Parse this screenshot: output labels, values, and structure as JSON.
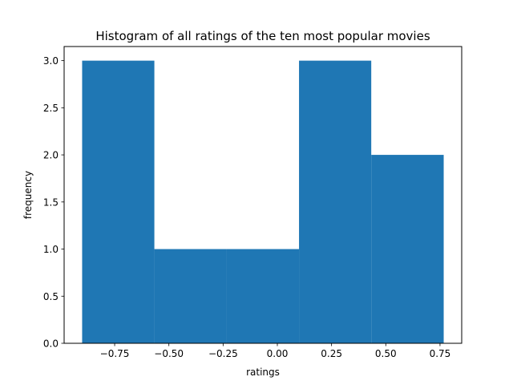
{
  "chart_data": {
    "type": "bar",
    "title": "Histogram of all ratings of the ten most popular movies",
    "xlabel": "ratings",
    "ylabel": "frequency",
    "bins": [
      {
        "x0": -0.9,
        "x1": -0.567,
        "count": 3
      },
      {
        "x0": -0.567,
        "x1": -0.233,
        "count": 1
      },
      {
        "x0": -0.233,
        "x1": 0.1,
        "count": 1
      },
      {
        "x0": 0.1,
        "x1": 0.433,
        "count": 3
      },
      {
        "x0": 0.433,
        "x1": 0.767,
        "count": 2
      }
    ],
    "xlim": [
      -0.983,
      0.85
    ],
    "ylim": [
      0,
      3.15
    ],
    "xticks": [
      -0.75,
      -0.5,
      -0.25,
      0.0,
      0.25,
      0.5,
      0.75
    ],
    "xtick_labels": [
      "−0.75",
      "−0.50",
      "−0.25",
      "0.00",
      "0.25",
      "0.50",
      "0.75"
    ],
    "yticks": [
      0.0,
      0.5,
      1.0,
      1.5,
      2.0,
      2.5,
      3.0
    ],
    "ytick_labels": [
      "0.0",
      "0.5",
      "1.0",
      "1.5",
      "2.0",
      "2.5",
      "3.0"
    ],
    "bar_color": "#1f77b4",
    "grid": false,
    "legend": false
  }
}
